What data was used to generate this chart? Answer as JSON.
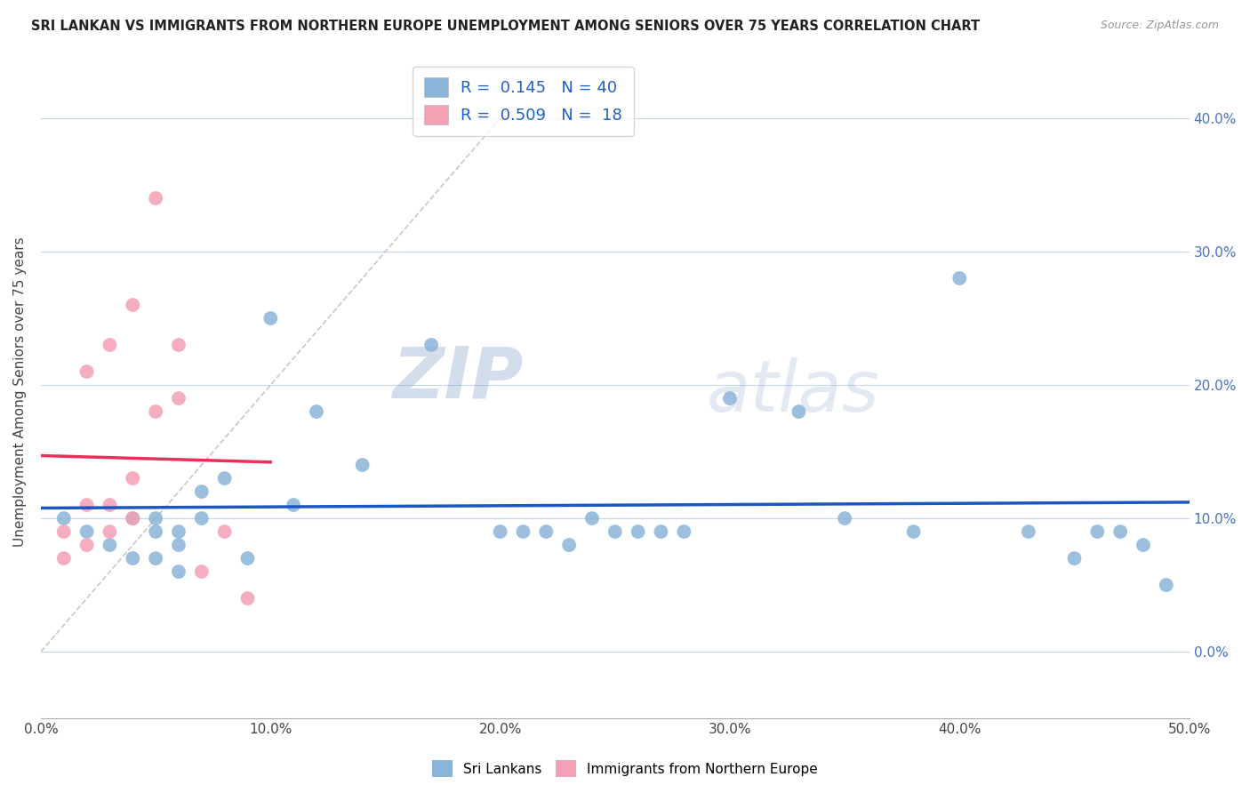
{
  "title": "SRI LANKAN VS IMMIGRANTS FROM NORTHERN EUROPE UNEMPLOYMENT AMONG SENIORS OVER 75 YEARS CORRELATION CHART",
  "source": "Source: ZipAtlas.com",
  "ylabel": "Unemployment Among Seniors over 75 years",
  "xlim": [
    0,
    0.5
  ],
  "ylim": [
    -0.05,
    0.44
  ],
  "r1": 0.145,
  "n1": 40,
  "r2": 0.509,
  "n2": 18,
  "blue_color": "#8ab4d8",
  "pink_color": "#f4a0b5",
  "blue_line_color": "#1a56c4",
  "pink_line_color": "#e8305a",
  "diagonal_color": "#c8c8c8",
  "watermark_zip": "ZIP",
  "watermark_atlas": "atlas",
  "legend1_label": "Sri Lankans",
  "legend2_label": "Immigrants from Northern Europe",
  "blue_scatter_x": [
    0.01,
    0.02,
    0.03,
    0.04,
    0.04,
    0.05,
    0.05,
    0.05,
    0.06,
    0.06,
    0.06,
    0.07,
    0.07,
    0.08,
    0.09,
    0.1,
    0.11,
    0.12,
    0.14,
    0.17,
    0.2,
    0.21,
    0.22,
    0.23,
    0.24,
    0.25,
    0.26,
    0.27,
    0.28,
    0.3,
    0.33,
    0.35,
    0.38,
    0.4,
    0.43,
    0.45,
    0.46,
    0.47,
    0.48,
    0.49
  ],
  "blue_scatter_y": [
    0.1,
    0.09,
    0.08,
    0.1,
    0.07,
    0.1,
    0.09,
    0.07,
    0.09,
    0.08,
    0.06,
    0.12,
    0.1,
    0.13,
    0.07,
    0.25,
    0.11,
    0.18,
    0.14,
    0.23,
    0.09,
    0.09,
    0.09,
    0.08,
    0.1,
    0.09,
    0.09,
    0.09,
    0.09,
    0.19,
    0.18,
    0.1,
    0.09,
    0.28,
    0.09,
    0.07,
    0.09,
    0.09,
    0.08,
    0.05
  ],
  "pink_scatter_x": [
    0.01,
    0.01,
    0.02,
    0.02,
    0.02,
    0.03,
    0.03,
    0.03,
    0.04,
    0.04,
    0.04,
    0.05,
    0.05,
    0.06,
    0.06,
    0.07,
    0.08,
    0.09
  ],
  "pink_scatter_y": [
    0.07,
    0.09,
    0.08,
    0.11,
    0.21,
    0.09,
    0.11,
    0.23,
    0.1,
    0.13,
    0.26,
    0.18,
    0.34,
    0.23,
    0.19,
    0.06,
    0.09,
    0.04
  ]
}
